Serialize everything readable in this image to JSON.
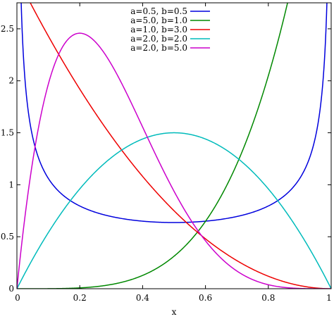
{
  "chart_data": {
    "type": "line",
    "title": "",
    "xlabel": "x",
    "ylabel": "",
    "xlim": [
      0,
      1
    ],
    "ylim": [
      0,
      2.75
    ],
    "x_ticks": [
      "0",
      "0.2",
      "0.4",
      "0.6",
      "0.8",
      "1"
    ],
    "x_tick_values": [
      0,
      0.2,
      0.4,
      0.6,
      0.8,
      1.0
    ],
    "y_ticks": [
      "0",
      "0.5",
      "1",
      "1.5",
      "2",
      "2.5"
    ],
    "y_tick_values": [
      0,
      0.5,
      1.0,
      1.5,
      2.0,
      2.5
    ],
    "grid": false,
    "legend_position": "top-center",
    "series": [
      {
        "name": "a=0.5, b=0.5",
        "color": "#0000dd",
        "a": 0.5,
        "b": 0.5
      },
      {
        "name": "a=5.0, b=1.0",
        "color": "#008800",
        "a": 5.0,
        "b": 1.0
      },
      {
        "name": "a=1.0, b=3.0",
        "color": "#ee0000",
        "a": 1.0,
        "b": 3.0
      },
      {
        "name": "a=2.0, b=2.0",
        "color": "#00bbbb",
        "a": 2.0,
        "b": 2.0
      },
      {
        "name": "a=2.0, b=5.0",
        "color": "#cc00cc",
        "a": 2.0,
        "b": 5.0
      }
    ]
  }
}
